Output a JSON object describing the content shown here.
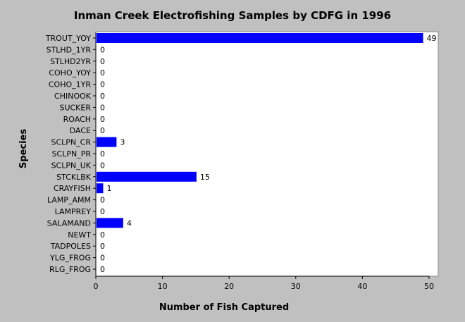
{
  "chart_data": {
    "type": "bar",
    "orientation": "horizontal",
    "title": "Inman Creek Electrofishing Samples by CDFG in 1996",
    "xlabel": "Number of Fish Captured",
    "ylabel": "Species",
    "xlim": [
      0,
      50
    ],
    "x_ticks": [
      "0",
      "10",
      "20",
      "30",
      "40",
      "50"
    ],
    "categories": [
      "TROUT_YOY",
      "STLHD_1YR",
      "STLHD2YR",
      "COHO_YOY",
      "COHO_1YR",
      "CHINOOK",
      "SUCKER",
      "ROACH",
      "DACE",
      "SCLPN_CR",
      "SCLPN_PR",
      "SCLPN_UK",
      "STCKLBK",
      "CRAYFISH",
      "LAMP_AMM",
      "LAMPREY",
      "SALAMAND",
      "NEWT",
      "TADPOLES",
      "YLG_FROG",
      "RLG_FROG"
    ],
    "values": [
      49,
      0,
      0,
      0,
      0,
      0,
      0,
      0,
      0,
      3,
      0,
      0,
      15,
      1,
      0,
      0,
      4,
      0,
      0,
      0,
      0
    ],
    "bar_color": "#0000ff",
    "plot_background": "#ffffff",
    "page_background": "#c0c0c0",
    "grid": false,
    "legend": "none"
  }
}
